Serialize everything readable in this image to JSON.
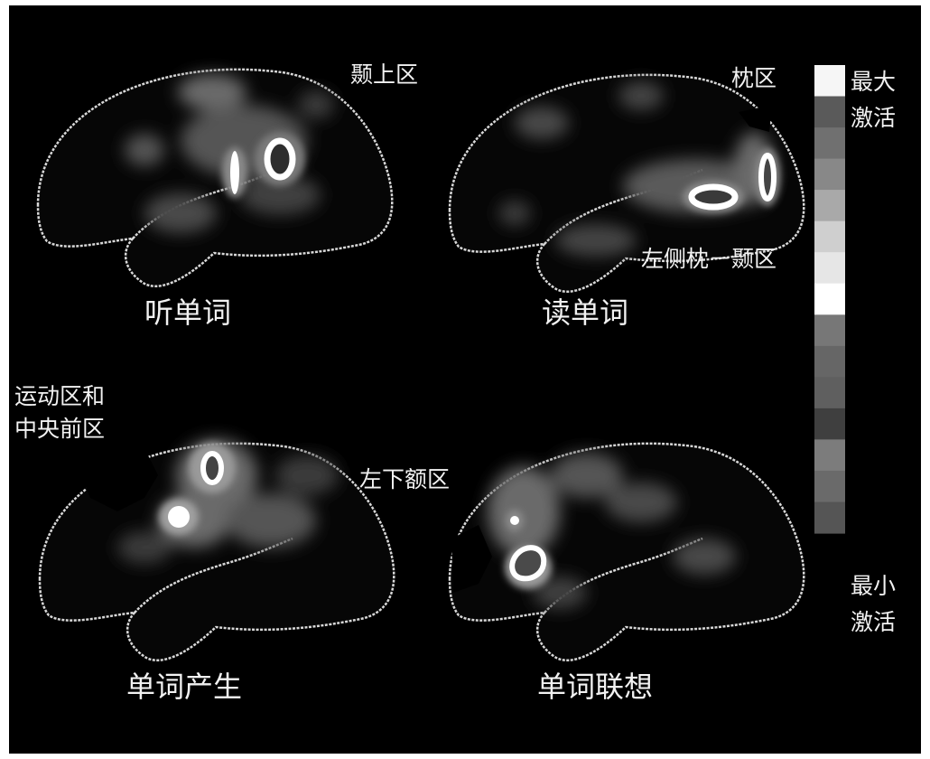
{
  "panels": [
    {
      "caption": "听单词",
      "label": "颞上区"
    },
    {
      "caption": "读单词",
      "label": "枕区",
      "label2": "左侧枕－颞区"
    },
    {
      "caption": "单词产生",
      "label": "运动区和",
      "label_line2": "中央前区"
    },
    {
      "caption": "单词联想",
      "label": "左下额区"
    }
  ],
  "legend": {
    "max_line1": "最大",
    "max_line2": "激活",
    "min_line1": "最小",
    "min_line2": "激活",
    "colors": [
      "#f6f6f6",
      "#5a5a5a",
      "#707070",
      "#888888",
      "#a9a9a9",
      "#cfcfcf",
      "#e6e6e6",
      "#ffffff",
      "#777777",
      "#666666",
      "#5f5f5f",
      "#3f3f3f",
      "#7c7c7c",
      "#6a6a6a",
      "#555555"
    ]
  }
}
